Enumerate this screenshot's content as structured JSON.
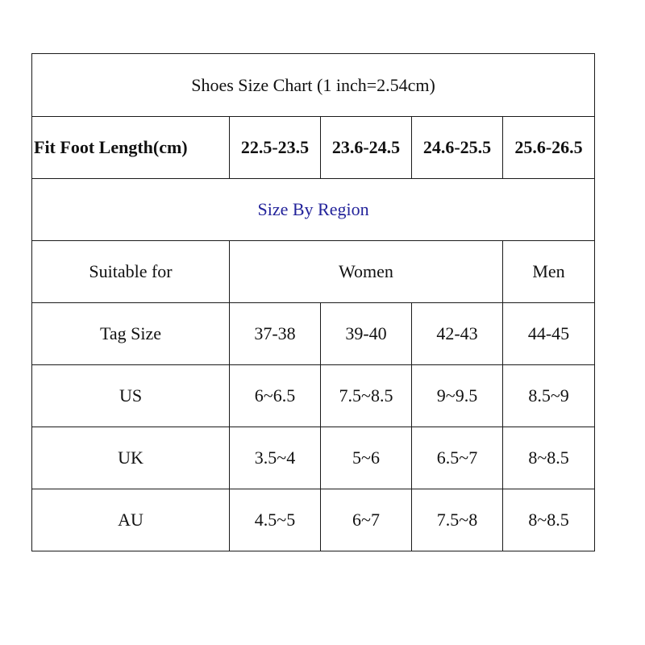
{
  "table": {
    "title": "Shoes Size Chart (1 inch=2.54cm)",
    "foot_length": {
      "label": "Fit Foot Length(cm)",
      "values": [
        "22.5-23.5",
        "23.6-24.5",
        "24.6-25.5",
        "25.6-26.5"
      ]
    },
    "region_heading": "Size By Region",
    "suitable_for": {
      "label": "Suitable for",
      "women": "Women",
      "men": "Men"
    },
    "rows": [
      {
        "label": "Tag Size",
        "values": [
          "37-38",
          "39-40",
          "42-43",
          "44-45"
        ]
      },
      {
        "label": "US",
        "values": [
          "6~6.5",
          "7.5~8.5",
          "9~9.5",
          "8.5~9"
        ]
      },
      {
        "label": "UK",
        "values": [
          "3.5~4",
          "5~6",
          "6.5~7",
          "8~8.5"
        ]
      },
      {
        "label": "AU",
        "values": [
          "4.5~5",
          "6~7",
          "7.5~8",
          "8~8.5"
        ]
      }
    ]
  },
  "colors": {
    "border": "#1a1a1a",
    "text": "#111111",
    "region_heading": "#22229a"
  }
}
